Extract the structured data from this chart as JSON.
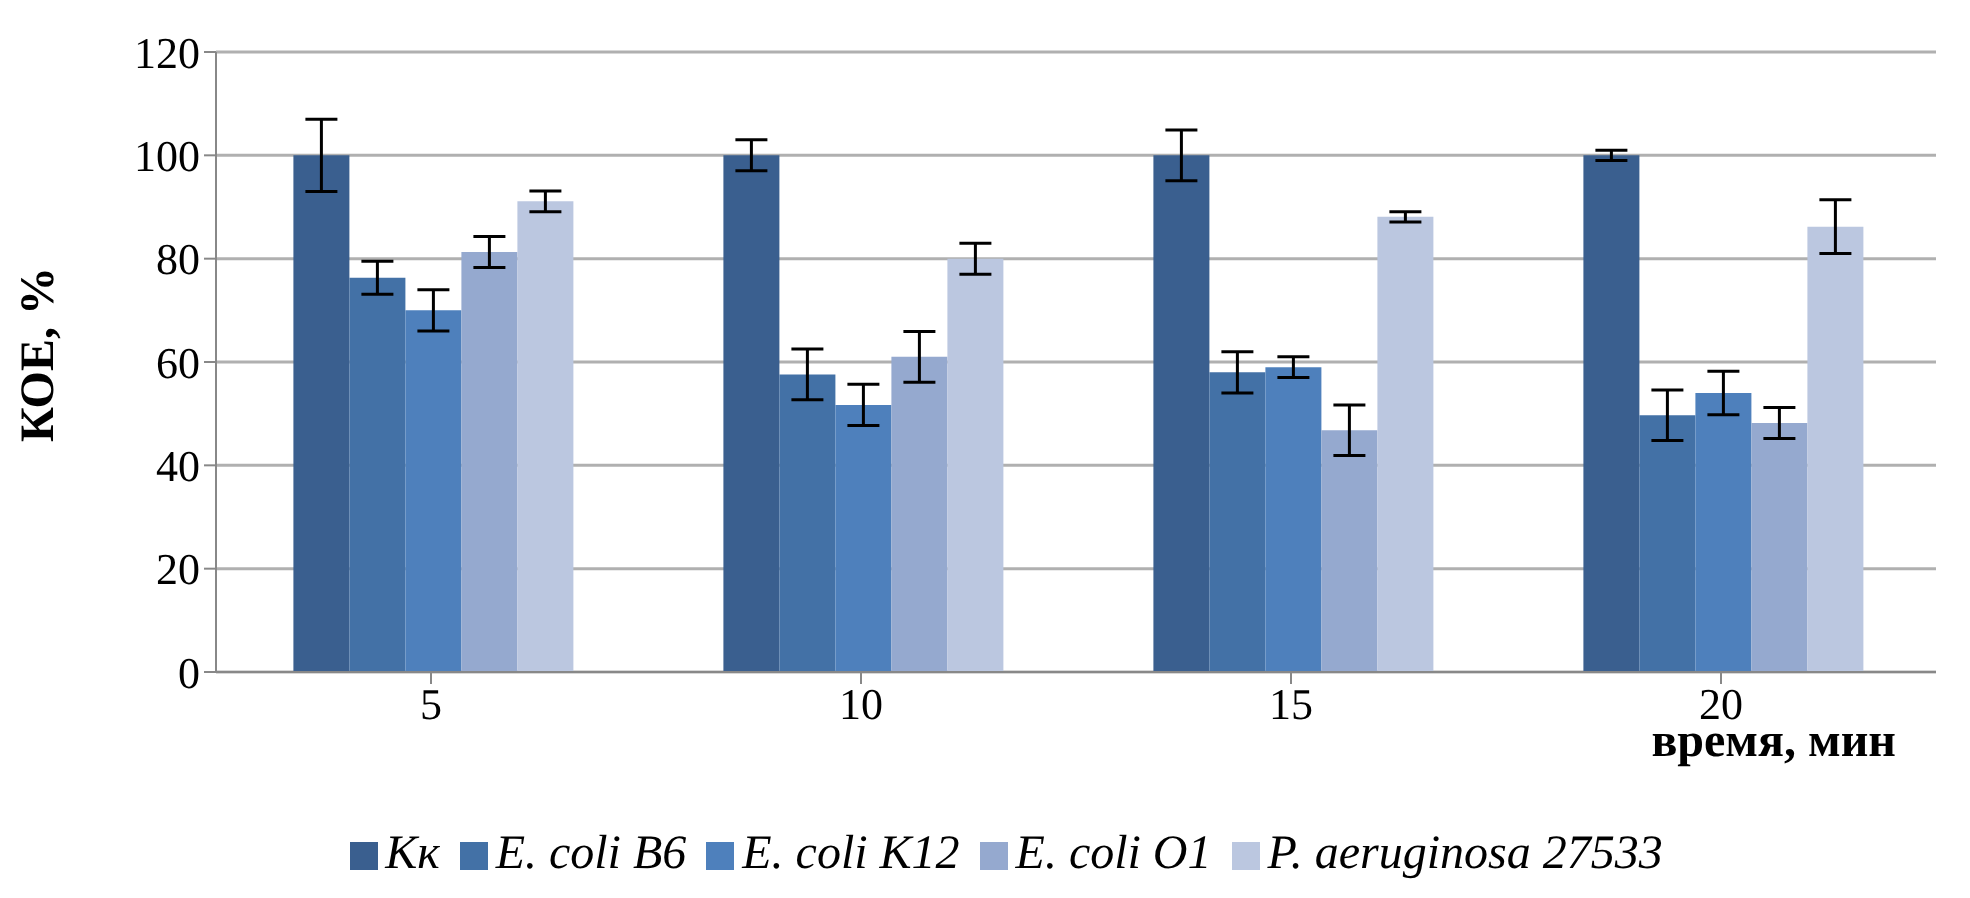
{
  "chart_data": {
    "type": "bar",
    "ylabel": "КОЕ, %",
    "xlabel": "время, мин",
    "categories": [
      "5",
      "10",
      "15",
      "20"
    ],
    "series": [
      {
        "name": "Кк",
        "color": "#3a5f8f",
        "values": [
          100,
          100,
          100,
          100
        ],
        "errors": [
          7,
          3,
          4.9,
          1
        ]
      },
      {
        "name": "E. coli B6",
        "color": "#4371a6",
        "values": [
          76.3,
          57.6,
          58,
          49.7
        ],
        "errors": [
          3.2,
          4.9,
          4,
          4.9
        ]
      },
      {
        "name": "E. coli K12",
        "color": "#4e80bc",
        "values": [
          70,
          51.7,
          59,
          54
        ],
        "errors": [
          4,
          4,
          2,
          4.2
        ]
      },
      {
        "name": "E. coli O1",
        "color": "#95a9cf",
        "values": [
          81.3,
          61,
          46.8,
          48.2
        ],
        "errors": [
          3,
          4.9,
          4.9,
          3
        ]
      },
      {
        "name": "P. aeruginosa 27533",
        "color": "#bbc7e0",
        "values": [
          91.1,
          80,
          88.1,
          86.2
        ],
        "errors": [
          2,
          3,
          1,
          5.2
        ]
      }
    ],
    "ylim": [
      0,
      120
    ],
    "yticks": [
      0,
      20,
      40,
      60,
      80,
      100,
      120
    ],
    "grid": "y",
    "legend": "bottom"
  }
}
